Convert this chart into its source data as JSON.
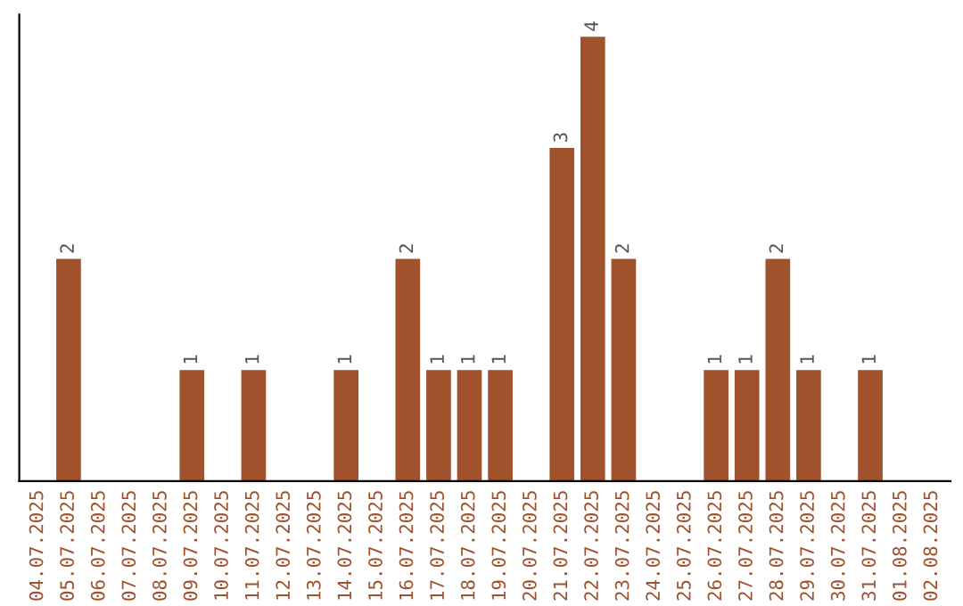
{
  "chart_data": {
    "type": "bar",
    "categories": [
      "04.07.2025",
      "05.07.2025",
      "06.07.2025",
      "07.07.2025",
      "08.07.2025",
      "09.07.2025",
      "10.07.2025",
      "11.07.2025",
      "12.07.2025",
      "13.07.2025",
      "14.07.2025",
      "15.07.2025",
      "16.07.2025",
      "17.07.2025",
      "18.07.2025",
      "19.07.2025",
      "20.07.2025",
      "21.07.2025",
      "22.07.2025",
      "23.07.2025",
      "24.07.2025",
      "25.07.2025",
      "26.07.2025",
      "27.07.2025",
      "28.07.2025",
      "29.07.2025",
      "30.07.2025",
      "31.07.2025",
      "01.08.2025",
      "02.08.2025"
    ],
    "values": [
      0,
      2,
      0,
      0,
      0,
      1,
      0,
      1,
      0,
      0,
      1,
      0,
      2,
      1,
      1,
      1,
      0,
      3,
      4,
      2,
      0,
      0,
      1,
      1,
      2,
      1,
      0,
      1,
      0,
      0
    ],
    "value_labels": [
      null,
      "2",
      null,
      null,
      null,
      "1",
      null,
      "1",
      null,
      null,
      "1",
      null,
      "2",
      "1",
      "1",
      "1",
      null,
      "3",
      "4",
      "2",
      null,
      null,
      "1",
      "1",
      "2",
      "1",
      null,
      "1",
      null,
      null
    ],
    "color": "#a0522d",
    "ylim": [
      0,
      4.2
    ],
    "tick_labels": "x",
    "grid": false,
    "legend": false
  }
}
